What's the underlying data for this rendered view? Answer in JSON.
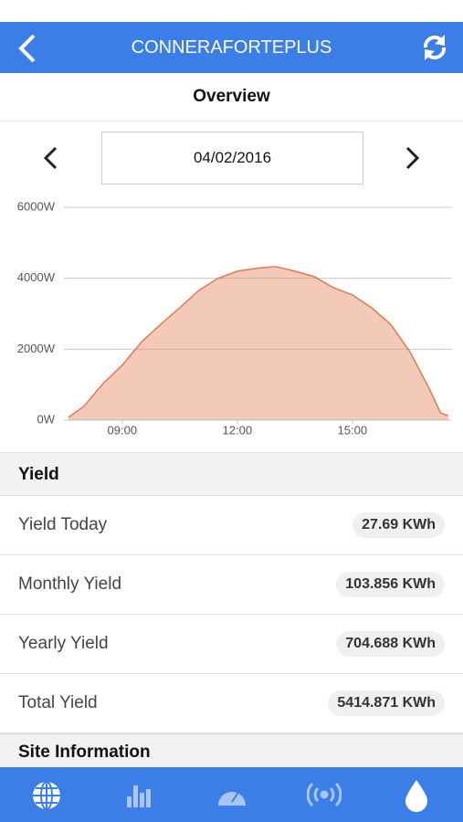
{
  "header": {
    "title": "CONNERAFORTEPLUS"
  },
  "overview": {
    "title": "Overview"
  },
  "date": {
    "value": "04/02/2016"
  },
  "chart_data": {
    "type": "area",
    "x": [
      7.6,
      8.0,
      8.5,
      9.0,
      9.5,
      10.0,
      10.5,
      11.0,
      11.5,
      12.0,
      12.5,
      13.0,
      13.5,
      14.0,
      14.5,
      15.0,
      15.5,
      16.0,
      16.5,
      17.0,
      17.3,
      17.5
    ],
    "series": [
      {
        "color": "#e07a50",
        "values": [
          80,
          390,
          1030,
          1550,
          2200,
          2700,
          3170,
          3660,
          4000,
          4200,
          4280,
          4330,
          4200,
          4050,
          3740,
          3530,
          3170,
          2700,
          1930,
          900,
          200,
          130
        ]
      }
    ],
    "xlim": [
      7.48,
      17.6
    ],
    "ylim": [
      0,
      6000
    ],
    "xticks": [
      {
        "value": 9,
        "label": "09:00"
      },
      {
        "value": 12,
        "label": "12:00"
      },
      {
        "value": 15,
        "label": "15:00"
      }
    ],
    "yticks": [
      {
        "value": 0,
        "label": "0W"
      },
      {
        "value": 2000,
        "label": "2000W"
      },
      {
        "value": 4000,
        "label": "4000W"
      },
      {
        "value": 6000,
        "label": "6000W"
      }
    ],
    "grid": true
  },
  "yield": {
    "title": "Yield",
    "rows": [
      {
        "label": "Yield Today",
        "value": "27.69 KWh"
      },
      {
        "label": "Monthly Yield",
        "value": "103.856 KWh"
      },
      {
        "label": "Yearly Yield",
        "value": "704.688 KWh"
      },
      {
        "label": "Total Yield",
        "value": "5414.871 KWh"
      }
    ]
  },
  "site_info": {
    "title": "Site Information"
  }
}
